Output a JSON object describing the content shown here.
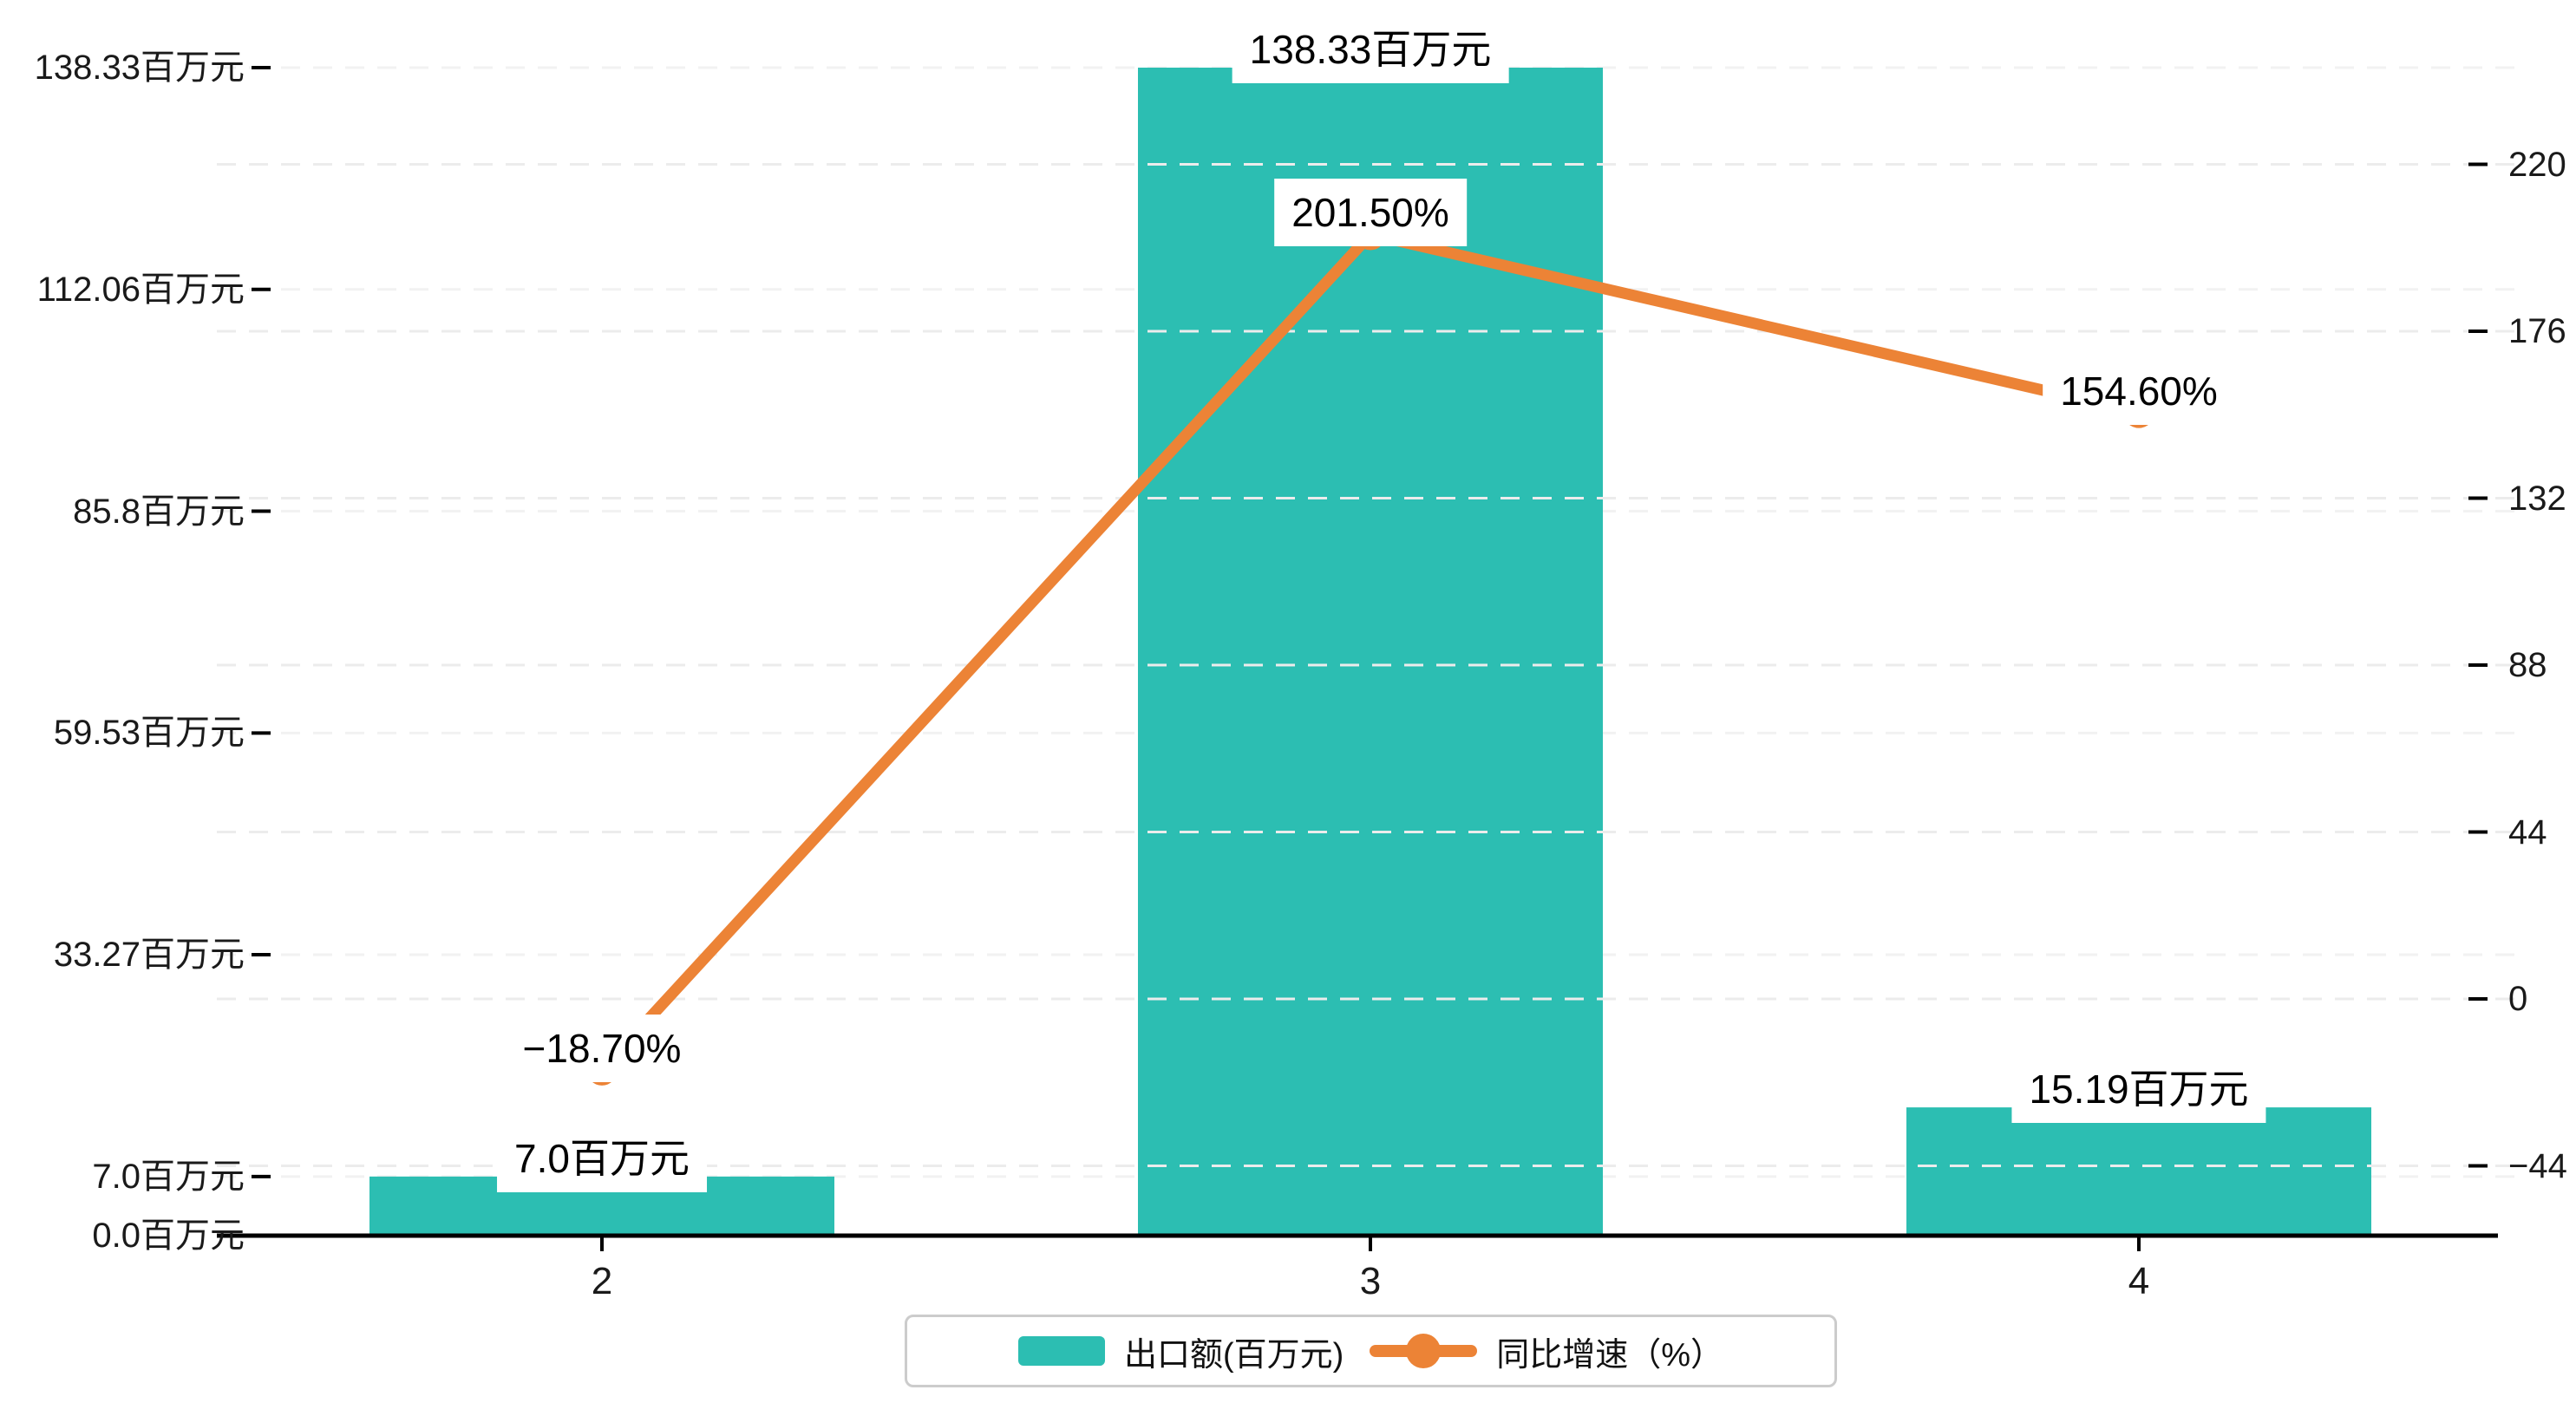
{
  "chart_data": {
    "type": "bar+line",
    "categories": [
      "2",
      "3",
      "4"
    ],
    "series": [
      {
        "name": "出口额(百万元)",
        "type": "bar",
        "axis": "left",
        "values": [
          7.0,
          138.33,
          15.19
        ],
        "data_labels": [
          "7.0百万元",
          "138.33百万元",
          "15.19百万元"
        ]
      },
      {
        "name": "同比增速（%）",
        "type": "line",
        "axis": "right",
        "values": [
          -18.7,
          201.5,
          154.6
        ],
        "data_labels": [
          "−18.70%",
          "201.50%",
          "154.60%"
        ]
      }
    ],
    "left_axis": {
      "unit": "百万元",
      "ticks": [
        0,
        7.0,
        33.27,
        59.53,
        85.8,
        112.06,
        138.33
      ],
      "tick_labels": [
        "0.0百万元",
        "7.0百万元",
        "33.27百万元",
        "59.53百万元",
        "85.8百万元",
        "112.06百万元",
        "138.33百万元"
      ],
      "range": [
        0,
        138.33
      ]
    },
    "right_axis": {
      "unit": "%",
      "ticks": [
        -44,
        0,
        44,
        88,
        132,
        176,
        220
      ],
      "tick_labels": [
        "−44",
        "0",
        "44",
        "88",
        "132",
        "176",
        "220"
      ],
      "range": [
        -44,
        220
      ]
    },
    "grid": true,
    "legend_position": "bottom"
  },
  "legend": {
    "items": [
      {
        "label": "出口额(百万元)",
        "marker": "bar"
      },
      {
        "label": "同比增速（%）",
        "marker": "line"
      }
    ]
  },
  "colors": {
    "bar": "#2CBEB2",
    "line": "#EC8336",
    "axis": "#000000",
    "grid_left": "#f2f2f2",
    "grid_right": "#ececec",
    "text": "#1a1a1a",
    "legend_border": "#cccccc",
    "label_bg": "#ffffff"
  }
}
